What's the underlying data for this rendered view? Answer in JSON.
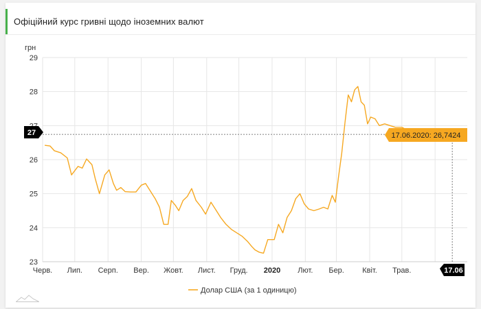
{
  "header": {
    "title": "Офіційний курс гривні щодо іноземних валют"
  },
  "colors": {
    "accent": "#47b04b",
    "series": "#f6a821",
    "grid": "#e6e6e6",
    "marker_bg": "#000000"
  },
  "icons": {
    "footer_logo": "mountain-line-logo-icon"
  },
  "chart_data": {
    "type": "line",
    "y_unit": "грн",
    "ylim": [
      23,
      29
    ],
    "y_ticks": [
      23,
      24,
      25,
      26,
      27,
      28,
      29
    ],
    "y_tick_labels": [
      "23",
      "24",
      "25",
      "26",
      "27",
      "28",
      "29"
    ],
    "grid": true,
    "x_range": [
      "2019-06-01",
      "2020-07-01"
    ],
    "x_ticks": [
      {
        "label": "Черв.",
        "date": "2019-06-01",
        "bold": false
      },
      {
        "label": "Лип.",
        "date": "2019-07-01",
        "bold": false
      },
      {
        "label": "Серп.",
        "date": "2019-08-01",
        "bold": false
      },
      {
        "label": "Вер.",
        "date": "2019-09-01",
        "bold": false
      },
      {
        "label": "Жовт.",
        "date": "2019-10-01",
        "bold": false
      },
      {
        "label": "Лист.",
        "date": "2019-11-01",
        "bold": false
      },
      {
        "label": "Груд.",
        "date": "2019-12-01",
        "bold": false
      },
      {
        "label": "2020",
        "date": "2020-01-01",
        "bold": true
      },
      {
        "label": "Лют.",
        "date": "2020-02-01",
        "bold": false
      },
      {
        "label": "Бер.",
        "date": "2020-03-01",
        "bold": false
      },
      {
        "label": "Квіт.",
        "date": "2020-04-01",
        "bold": false
      },
      {
        "label": "Трав.",
        "date": "2020-05-01",
        "bold": false
      },
      {
        "label": "Черв.",
        "date": "2020-06-01",
        "bold": false
      }
    ],
    "series": [
      {
        "name": "Долар США (за 1 одиницю)",
        "x": [
          "2019-06-03",
          "2019-06-08",
          "2019-06-12",
          "2019-06-18",
          "2019-06-24",
          "2019-06-28",
          "2019-07-04",
          "2019-07-08",
          "2019-07-12",
          "2019-07-17",
          "2019-07-20",
          "2019-07-24",
          "2019-07-29",
          "2019-08-02",
          "2019-08-06",
          "2019-08-09",
          "2019-08-13",
          "2019-08-17",
          "2019-08-22",
          "2019-08-27",
          "2019-09-01",
          "2019-09-05",
          "2019-09-09",
          "2019-09-14",
          "2019-09-18",
          "2019-09-22",
          "2019-09-26",
          "2019-09-29",
          "2019-10-03",
          "2019-10-06",
          "2019-10-10",
          "2019-10-14",
          "2019-10-18",
          "2019-10-22",
          "2019-10-27",
          "2019-10-31",
          "2019-11-05",
          "2019-11-09",
          "2019-11-14",
          "2019-11-19",
          "2019-11-24",
          "2019-11-29",
          "2019-12-04",
          "2019-12-09",
          "2019-12-13",
          "2019-12-16",
          "2019-12-20",
          "2019-12-24",
          "2019-12-28",
          "2019-12-31",
          "2020-01-03",
          "2020-01-07",
          "2020-01-11",
          "2020-01-15",
          "2020-01-19",
          "2020-01-23",
          "2020-01-27",
          "2020-01-31",
          "2020-02-04",
          "2020-02-09",
          "2020-02-14",
          "2020-02-18",
          "2020-02-22",
          "2020-02-26",
          "2020-02-29",
          "2020-03-03",
          "2020-03-06",
          "2020-03-09",
          "2020-03-12",
          "2020-03-15",
          "2020-03-18",
          "2020-03-21",
          "2020-03-24",
          "2020-03-27",
          "2020-03-30",
          "2020-04-02",
          "2020-04-06",
          "2020-04-10",
          "2020-04-15",
          "2020-04-20",
          "2020-04-25",
          "2020-05-01",
          "2020-05-07",
          "2020-05-13",
          "2020-05-19",
          "2020-05-25",
          "2020-05-31",
          "2020-06-05",
          "2020-06-10",
          "2020-06-14",
          "2020-06-17"
        ],
        "values": [
          26.42,
          26.4,
          26.26,
          26.2,
          26.05,
          25.55,
          25.8,
          25.75,
          26.02,
          25.85,
          25.45,
          25.0,
          25.55,
          25.7,
          25.3,
          25.1,
          25.18,
          25.06,
          25.05,
          25.05,
          25.25,
          25.3,
          25.1,
          24.85,
          24.6,
          24.1,
          24.1,
          24.8,
          24.65,
          24.5,
          24.8,
          24.92,
          25.15,
          24.8,
          24.6,
          24.4,
          24.75,
          24.55,
          24.3,
          24.1,
          23.95,
          23.85,
          23.75,
          23.6,
          23.45,
          23.35,
          23.28,
          23.25,
          23.65,
          23.65,
          23.65,
          24.1,
          23.85,
          24.3,
          24.5,
          24.85,
          25.0,
          24.7,
          24.55,
          24.5,
          24.55,
          24.6,
          24.55,
          24.95,
          24.75,
          25.5,
          26.2,
          27.1,
          27.9,
          27.7,
          28.05,
          28.15,
          27.7,
          27.6,
          27.05,
          27.25,
          27.2,
          27.0,
          27.05,
          27.0,
          26.95,
          26.95,
          26.85,
          26.85,
          26.75,
          26.76,
          26.8,
          26.75,
          26.74,
          26.73,
          26.7424
        ]
      }
    ],
    "crosshair": {
      "x_label": "17.06",
      "y_label": "27",
      "tooltip": "17.06.2020: 26,7424"
    },
    "legend": {
      "position": "bottom-center",
      "label": "Долар США (за 1 одиницю)"
    }
  }
}
